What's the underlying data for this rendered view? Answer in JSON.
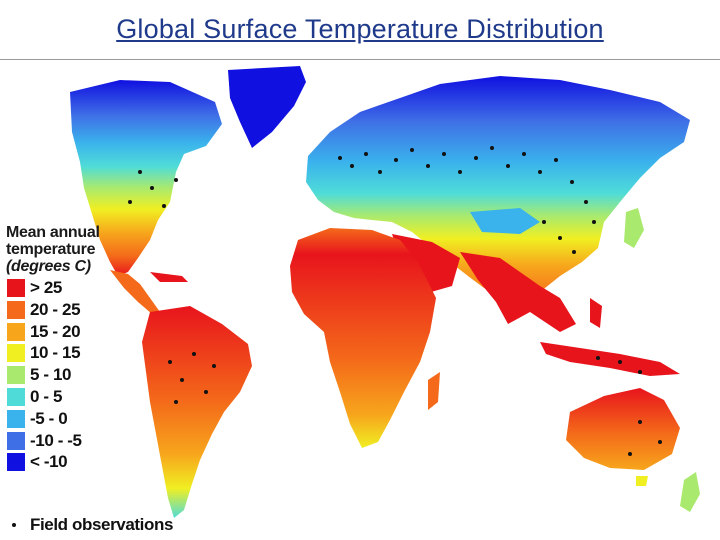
{
  "title": "Global Surface Temperature Distribution",
  "legend": {
    "heading": [
      "Mean annual",
      "temperature"
    ],
    "unit": "(degrees C)",
    "items": [
      {
        "label": "> 25",
        "color": "#e8141c"
      },
      {
        "label": "20 - 25",
        "color": "#f46a1a"
      },
      {
        "label": "15 - 20",
        "color": "#f7a61c"
      },
      {
        "label": "10 - 15",
        "color": "#f0ef22"
      },
      {
        "label": "5 - 10",
        "color": "#a9ea6e"
      },
      {
        "label": "0 - 5",
        "color": "#4fdcd8"
      },
      {
        "label": "-5 - 0",
        "color": "#3ab2ec"
      },
      {
        "label": "-10 - -5",
        "color": "#3f6fe6"
      },
      {
        "label": "< -10",
        "color": "#1010e0"
      }
    ],
    "observations_label": "Field observations"
  }
}
